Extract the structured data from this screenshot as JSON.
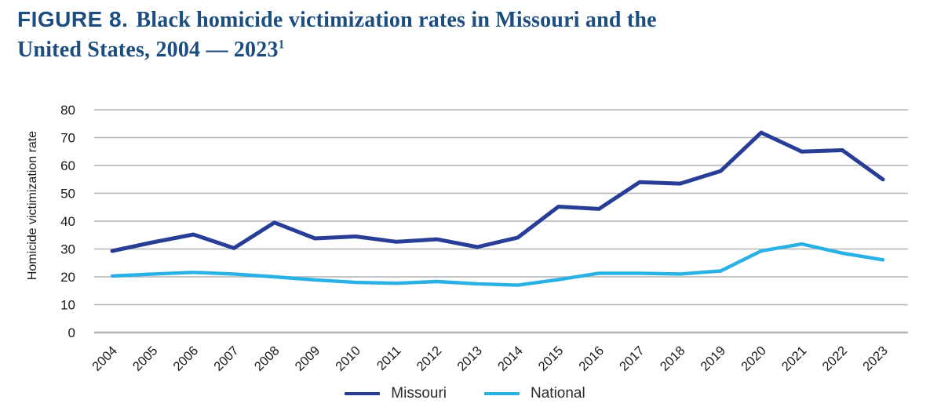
{
  "title": {
    "prefix": "FIGURE 8.",
    "line1": "Black homicide victimization rates in Missouri and the",
    "line2": "United States, 2004 — 2023",
    "footnote_marker": "1"
  },
  "colors": {
    "title_navy": "#1b4d80",
    "missouri_line": "#283e96",
    "national_line": "#29b0e4",
    "gridline_gray": "#b3b3b6",
    "axis_text": "#1a1a1a",
    "legend_text": "#2b2b2b"
  },
  "chart_data": {
    "type": "line",
    "title": "FIGURE 8. Black homicide victimization rates in Missouri and the United States, 2004 — 2023",
    "xlabel": "",
    "ylabel": "Homicide victimization rate",
    "ylim": [
      0,
      80
    ],
    "ytick_step": 10,
    "grid": true,
    "legend_position": "bottom-center",
    "categories": [
      "2004",
      "2005",
      "2006",
      "2007",
      "2008",
      "2009",
      "2010",
      "2011",
      "2012",
      "2013",
      "2014",
      "2015",
      "2016",
      "2017",
      "2018",
      "2019",
      "2020",
      "2021",
      "2022",
      "2023"
    ],
    "series": [
      {
        "name": "Missouri",
        "color": "#283e96",
        "values": [
          29.3,
          32.4,
          35.2,
          30.3,
          39.5,
          33.8,
          34.5,
          32.6,
          33.5,
          30.7,
          34.1,
          45.2,
          44.4,
          54.0,
          53.5,
          58.0,
          71.8,
          65.0,
          65.5,
          55.0
        ]
      },
      {
        "name": "National",
        "color": "#29b0e4",
        "values": [
          20.3,
          21.0,
          21.6,
          21.0,
          20.0,
          18.9,
          18.0,
          17.7,
          18.3,
          17.5,
          17.0,
          19.0,
          21.3,
          21.3,
          21.0,
          22.1,
          29.3,
          31.8,
          28.5,
          26.1
        ]
      }
    ]
  }
}
